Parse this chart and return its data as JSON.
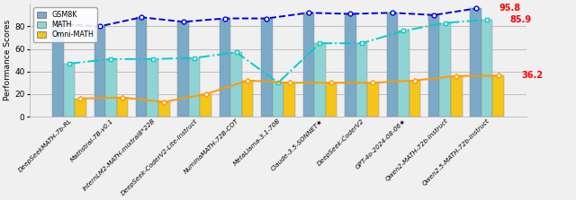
{
  "models": [
    "DeepSeekMATH-7b-RL",
    "Mathstral-7B-v0.1",
    "InternLM2-MATH-mixtral8*22B",
    "DeepSeek-CoderV2-Lite-Instruct",
    "NuminaMATH-72B-COT",
    "MetaLlama-3.1-70B",
    "Claude-3.5-SONNET★",
    "DeepSeek-CoderV2",
    "GPT-4o-2024-08-06★",
    "Qwen2-MATH-72b-Instruct",
    "Qwen2.5-MATH-72b-Instruct"
  ],
  "gsm8k": [
    82,
    80,
    88,
    84,
    87,
    87,
    92,
    91,
    92,
    90,
    95.8
  ],
  "math": [
    47,
    51,
    51,
    52,
    57,
    30,
    65,
    65,
    76,
    83,
    85.9
  ],
  "omni_math": [
    16,
    17,
    13,
    20,
    32,
    30,
    30,
    30,
    32,
    36,
    36.2
  ],
  "gsm8k_color": "#7aaac8",
  "math_color": "#8fd4d4",
  "omni_color": "#f5c518",
  "gsm8k_line_color": "#0000dd",
  "math_line_color": "#00cccc",
  "omni_line_color": "#ff9900",
  "ylabel": "Performance Scores",
  "ylim": [
    0,
    100
  ],
  "yticks": [
    0,
    20,
    40,
    60,
    80
  ],
  "annot_gsm8k": "95.8",
  "annot_math": "85.9",
  "annot_omni": "36.2",
  "bg_color": "#f5f5f5"
}
